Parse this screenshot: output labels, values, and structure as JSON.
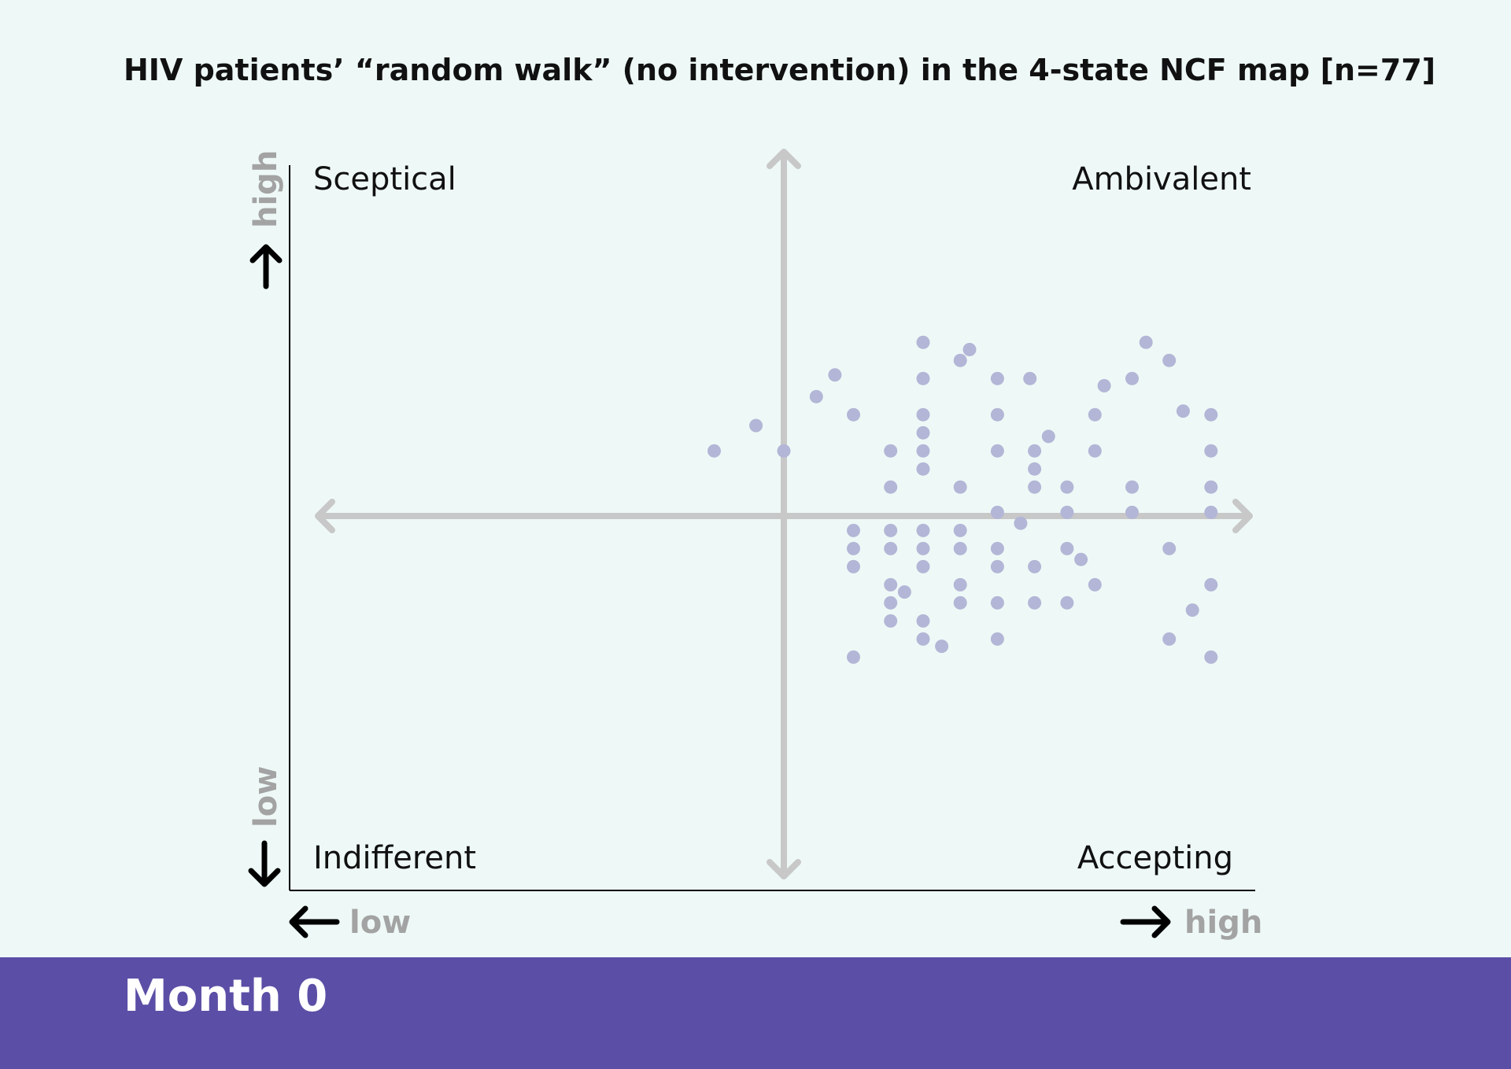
{
  "chart_data": {
    "type": "scatter",
    "title": "HIV patients’ “random walk” (no intervention) in the 4-state NCF map [n=77]",
    "quadrants": {
      "top_left": "Sceptical",
      "top_right": "Ambivalent",
      "bottom_left": "Indifferent",
      "bottom_right": "Accepting"
    },
    "x_axis": {
      "low_label": "low",
      "high_label": "high"
    },
    "y_axis": {
      "low_label": "low",
      "high_label": "high"
    },
    "xlim": [
      -10,
      10
    ],
    "ylim": [
      -10,
      10
    ],
    "colors": {
      "points": "#b3b6d6",
      "cross_axes": "#c8c8c8",
      "footer": "#5b4ea6"
    },
    "points": [
      [
        3.0,
        4.8
      ],
      [
        3.8,
        4.3
      ],
      [
        5.3,
        3.8
      ],
      [
        7.8,
        4.8
      ],
      [
        8.3,
        4.3
      ],
      [
        7.5,
        3.8
      ],
      [
        0.7,
        3.3
      ],
      [
        1.5,
        2.8
      ],
      [
        3.0,
        3.8
      ],
      [
        3.0,
        2.8
      ],
      [
        4.6,
        3.8
      ],
      [
        4.6,
        2.8
      ],
      [
        6.7,
        2.8
      ],
      [
        9.2,
        2.8
      ],
      [
        3.0,
        2.3
      ],
      [
        -1.5,
        1.8
      ],
      [
        0.0,
        1.8
      ],
      [
        2.3,
        1.8
      ],
      [
        3.0,
        1.8
      ],
      [
        4.6,
        1.8
      ],
      [
        5.4,
        1.8
      ],
      [
        6.7,
        1.8
      ],
      [
        9.2,
        1.8
      ],
      [
        3.0,
        1.3
      ],
      [
        5.4,
        1.3
      ],
      [
        2.3,
        0.8
      ],
      [
        3.8,
        0.8
      ],
      [
        5.4,
        0.8
      ],
      [
        6.1,
        0.8
      ],
      [
        7.5,
        0.8
      ],
      [
        9.2,
        0.8
      ],
      [
        4.6,
        0.1
      ],
      [
        6.1,
        0.1
      ],
      [
        7.5,
        0.1
      ],
      [
        9.2,
        0.1
      ],
      [
        1.5,
        -0.4
      ],
      [
        2.3,
        -0.4
      ],
      [
        3.0,
        -0.4
      ],
      [
        3.8,
        -0.4
      ],
      [
        1.5,
        -0.9
      ],
      [
        2.3,
        -0.9
      ],
      [
        3.0,
        -0.9
      ],
      [
        3.8,
        -0.9
      ],
      [
        4.6,
        -0.9
      ],
      [
        6.1,
        -0.9
      ],
      [
        8.3,
        -0.9
      ],
      [
        1.5,
        -1.4
      ],
      [
        3.0,
        -1.4
      ],
      [
        4.6,
        -1.4
      ],
      [
        5.4,
        -1.4
      ],
      [
        2.3,
        -1.9
      ],
      [
        3.8,
        -1.9
      ],
      [
        6.7,
        -1.9
      ],
      [
        9.2,
        -1.9
      ],
      [
        2.3,
        -2.4
      ],
      [
        3.8,
        -2.4
      ],
      [
        4.6,
        -2.4
      ],
      [
        5.4,
        -2.4
      ],
      [
        6.1,
        -2.4
      ],
      [
        2.3,
        -2.9
      ],
      [
        3.0,
        -2.9
      ],
      [
        3.0,
        -3.4
      ],
      [
        4.6,
        -3.4
      ],
      [
        8.3,
        -3.4
      ],
      [
        1.5,
        -3.9
      ],
      [
        9.2,
        -3.9
      ],
      [
        6.9,
        3.6
      ],
      [
        4.0,
        4.6
      ],
      [
        1.1,
        3.9
      ],
      [
        8.6,
        2.9
      ],
      [
        5.7,
        2.2
      ],
      [
        -0.6,
        2.5
      ],
      [
        2.6,
        -2.1
      ],
      [
        6.4,
        -1.2
      ],
      [
        8.8,
        -2.6
      ],
      [
        3.4,
        -3.6
      ],
      [
        5.1,
        -0.2
      ]
    ]
  },
  "footer": {
    "label": "Month 0"
  }
}
